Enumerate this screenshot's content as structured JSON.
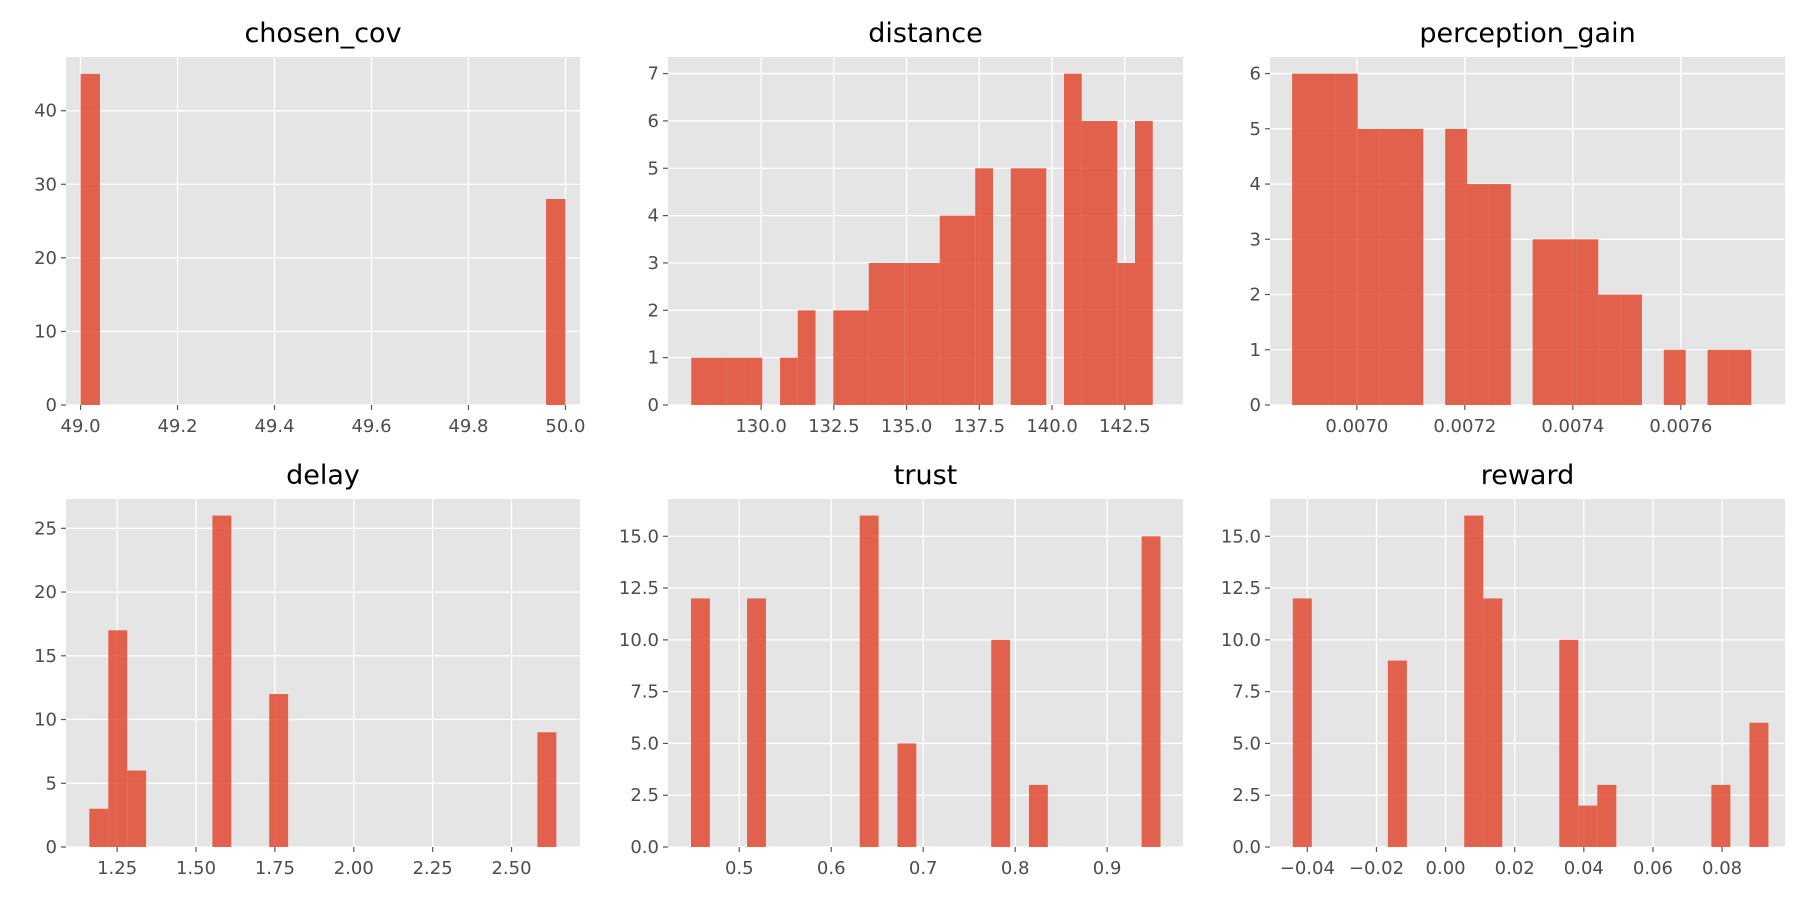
{
  "chart_data": [
    {
      "type": "bar",
      "title": "chosen_cov",
      "xlim": [
        48.97,
        50.03
      ],
      "ylim": [
        0,
        47.3
      ],
      "xticks": [
        49.0,
        49.2,
        49.4,
        49.6,
        49.8,
        50.0
      ],
      "xtick_labels": [
        "49.0",
        "49.2",
        "49.4",
        "49.6",
        "49.8",
        "50.0"
      ],
      "yticks": [
        0,
        10,
        20,
        30,
        40
      ],
      "ytick_labels": [
        "0",
        "10",
        "20",
        "30",
        "40"
      ],
      "bars": [
        {
          "x0": 49.0,
          "x1": 49.04,
          "value": 45
        },
        {
          "x0": 49.96,
          "x1": 50.0,
          "value": 28
        }
      ]
    },
    {
      "type": "bar",
      "title": "distance",
      "xlim": [
        126.8,
        144.5
      ],
      "ylim": [
        0,
        7.35
      ],
      "xticks": [
        130.0,
        132.5,
        135.0,
        137.5,
        140.0,
        142.5
      ],
      "xtick_labels": [
        "130.0",
        "132.5",
        "135.0",
        "137.5",
        "140.0",
        "142.5"
      ],
      "yticks": [
        0,
        1,
        2,
        3,
        4,
        5,
        6,
        7
      ],
      "ytick_labels": [
        "0",
        "1",
        "2",
        "3",
        "4",
        "5",
        "6",
        "7"
      ],
      "bars": [
        {
          "x0": 127.6,
          "x1": 128.21,
          "value": 1
        },
        {
          "x0": 128.21,
          "x1": 128.82,
          "value": 1
        },
        {
          "x0": 128.82,
          "x1": 129.43,
          "value": 1
        },
        {
          "x0": 129.43,
          "x1": 130.04,
          "value": 1
        },
        {
          "x0": 130.65,
          "x1": 131.26,
          "value": 1
        },
        {
          "x0": 131.26,
          "x1": 131.87,
          "value": 2
        },
        {
          "x0": 132.48,
          "x1": 133.09,
          "value": 2
        },
        {
          "x0": 133.09,
          "x1": 133.7,
          "value": 2
        },
        {
          "x0": 133.7,
          "x1": 134.31,
          "value": 3
        },
        {
          "x0": 134.31,
          "x1": 134.92,
          "value": 3
        },
        {
          "x0": 134.92,
          "x1": 135.53,
          "value": 3
        },
        {
          "x0": 135.53,
          "x1": 136.14,
          "value": 3
        },
        {
          "x0": 136.14,
          "x1": 136.75,
          "value": 4
        },
        {
          "x0": 136.75,
          "x1": 137.36,
          "value": 4
        },
        {
          "x0": 137.36,
          "x1": 137.97,
          "value": 5
        },
        {
          "x0": 138.58,
          "x1": 139.19,
          "value": 5
        },
        {
          "x0": 139.19,
          "x1": 139.8,
          "value": 5
        },
        {
          "x0": 140.41,
          "x1": 141.02,
          "value": 7
        },
        {
          "x0": 141.02,
          "x1": 141.63,
          "value": 6
        },
        {
          "x0": 141.63,
          "x1": 142.24,
          "value": 6
        },
        {
          "x0": 142.24,
          "x1": 142.85,
          "value": 3
        },
        {
          "x0": 142.85,
          "x1": 143.46,
          "value": 6
        }
      ]
    },
    {
      "type": "bar",
      "title": "perception_gain",
      "xlim": [
        0.006839,
        0.007793
      ],
      "ylim": [
        0,
        6.3
      ],
      "xticks": [
        0.007,
        0.0072,
        0.0074,
        0.0076
      ],
      "xtick_labels": [
        "0.0070",
        "0.0072",
        "0.0074",
        "0.0076"
      ],
      "yticks": [
        0,
        1,
        2,
        3,
        4,
        5,
        6
      ],
      "ytick_labels": [
        "0",
        "1",
        "2",
        "3",
        "4",
        "5",
        "6"
      ],
      "bars": [
        {
          "x0": 0.00688,
          "x1": 0.0069205,
          "value": 6
        },
        {
          "x0": 0.0069205,
          "x1": 0.006961,
          "value": 6
        },
        {
          "x0": 0.006961,
          "x1": 0.0070015,
          "value": 6
        },
        {
          "x0": 0.0070015,
          "x1": 0.007042,
          "value": 5
        },
        {
          "x0": 0.007042,
          "x1": 0.0070825,
          "value": 5
        },
        {
          "x0": 0.0070825,
          "x1": 0.007123,
          "value": 5
        },
        {
          "x0": 0.0071635,
          "x1": 0.007204,
          "value": 5
        },
        {
          "x0": 0.007204,
          "x1": 0.0072445,
          "value": 4
        },
        {
          "x0": 0.0072445,
          "x1": 0.007285,
          "value": 4
        },
        {
          "x0": 0.0073255,
          "x1": 0.007366,
          "value": 3
        },
        {
          "x0": 0.007366,
          "x1": 0.0074065,
          "value": 3
        },
        {
          "x0": 0.0074065,
          "x1": 0.007447,
          "value": 3
        },
        {
          "x0": 0.007447,
          "x1": 0.0074875,
          "value": 2
        },
        {
          "x0": 0.0074875,
          "x1": 0.007528,
          "value": 2
        },
        {
          "x0": 0.0075685,
          "x1": 0.007609,
          "value": 1
        },
        {
          "x0": 0.0076495,
          "x1": 0.00769,
          "value": 1
        },
        {
          "x0": 0.00769,
          "x1": 0.0077305,
          "value": 1
        }
      ]
    },
    {
      "type": "bar",
      "title": "delay",
      "xlim": [
        1.088,
        2.717
      ],
      "ylim": [
        0,
        27.3
      ],
      "xticks": [
        1.25,
        1.5,
        1.75,
        2.0,
        2.25,
        2.5
      ],
      "xtick_labels": [
        "1.25",
        "1.50",
        "1.75",
        "2.00",
        "2.25",
        "2.50"
      ],
      "yticks": [
        0,
        5,
        10,
        15,
        20,
        25
      ],
      "ytick_labels": [
        "0",
        "5",
        "10",
        "15",
        "20",
        "25"
      ],
      "bars": [
        {
          "x0": 1.162,
          "x1": 1.222,
          "value": 3
        },
        {
          "x0": 1.222,
          "x1": 1.282,
          "value": 17
        },
        {
          "x0": 1.282,
          "x1": 1.342,
          "value": 6
        },
        {
          "x0": 1.552,
          "x1": 1.612,
          "value": 26
        },
        {
          "x0": 1.732,
          "x1": 1.792,
          "value": 12
        },
        {
          "x0": 2.582,
          "x1": 2.642,
          "value": 9
        }
      ]
    },
    {
      "type": "bar",
      "title": "trust",
      "xlim": [
        0.4225,
        0.9825
      ],
      "ylim": [
        0,
        16.8
      ],
      "xticks": [
        0.5,
        0.6,
        0.7,
        0.8,
        0.9
      ],
      "xtick_labels": [
        "0.5",
        "0.6",
        "0.7",
        "0.8",
        "0.9"
      ],
      "yticks": [
        0,
        2.5,
        5,
        7.5,
        10,
        12.5,
        15
      ],
      "ytick_labels": [
        "0.0",
        "2.5",
        "5.0",
        "7.5",
        "10.0",
        "12.5",
        "15.0"
      ],
      "bars": [
        {
          "x0": 0.4475,
          "x1": 0.468,
          "value": 12
        },
        {
          "x0": 0.5085,
          "x1": 0.529,
          "value": 12
        },
        {
          "x0": 0.631,
          "x1": 0.6515,
          "value": 16
        },
        {
          "x0": 0.672,
          "x1": 0.6925,
          "value": 5
        },
        {
          "x0": 0.774,
          "x1": 0.7945,
          "value": 10
        },
        {
          "x0": 0.815,
          "x1": 0.8355,
          "value": 3
        },
        {
          "x0": 0.9375,
          "x1": 0.958,
          "value": 15
        }
      ]
    },
    {
      "type": "bar",
      "title": "reward",
      "xlim": [
        -0.0508,
        0.0982
      ],
      "ylim": [
        0,
        16.8
      ],
      "xticks": [
        -0.04,
        -0.02,
        0.0,
        0.02,
        0.04,
        0.06,
        0.08
      ],
      "xtick_labels": [
        "−0.04",
        "−0.02",
        "0.00",
        "0.02",
        "0.04",
        "0.06",
        "0.08"
      ],
      "yticks": [
        0,
        2.5,
        5,
        7.5,
        10,
        12.5,
        15
      ],
      "ytick_labels": [
        "0.0",
        "2.5",
        "5.0",
        "7.5",
        "10.0",
        "12.5",
        "15.0"
      ],
      "bars": [
        {
          "x0": -0.0442,
          "x1": -0.0387,
          "value": 12
        },
        {
          "x0": -0.0167,
          "x1": -0.0112,
          "value": 9
        },
        {
          "x0": 0.0054,
          "x1": 0.0109,
          "value": 16
        },
        {
          "x0": 0.0109,
          "x1": 0.0164,
          "value": 12
        },
        {
          "x0": 0.0329,
          "x1": 0.0384,
          "value": 10
        },
        {
          "x0": 0.0384,
          "x1": 0.0439,
          "value": 2
        },
        {
          "x0": 0.0439,
          "x1": 0.0494,
          "value": 3
        },
        {
          "x0": 0.0769,
          "x1": 0.0824,
          "value": 3
        },
        {
          "x0": 0.0879,
          "x1": 0.0934,
          "value": 6
        }
      ]
    }
  ],
  "colors": {
    "bar": "#e24a33",
    "axes_background": "#e5e5e5",
    "grid": "#ffffff",
    "tick_label": "#4d4d4d",
    "title": "#000000"
  }
}
